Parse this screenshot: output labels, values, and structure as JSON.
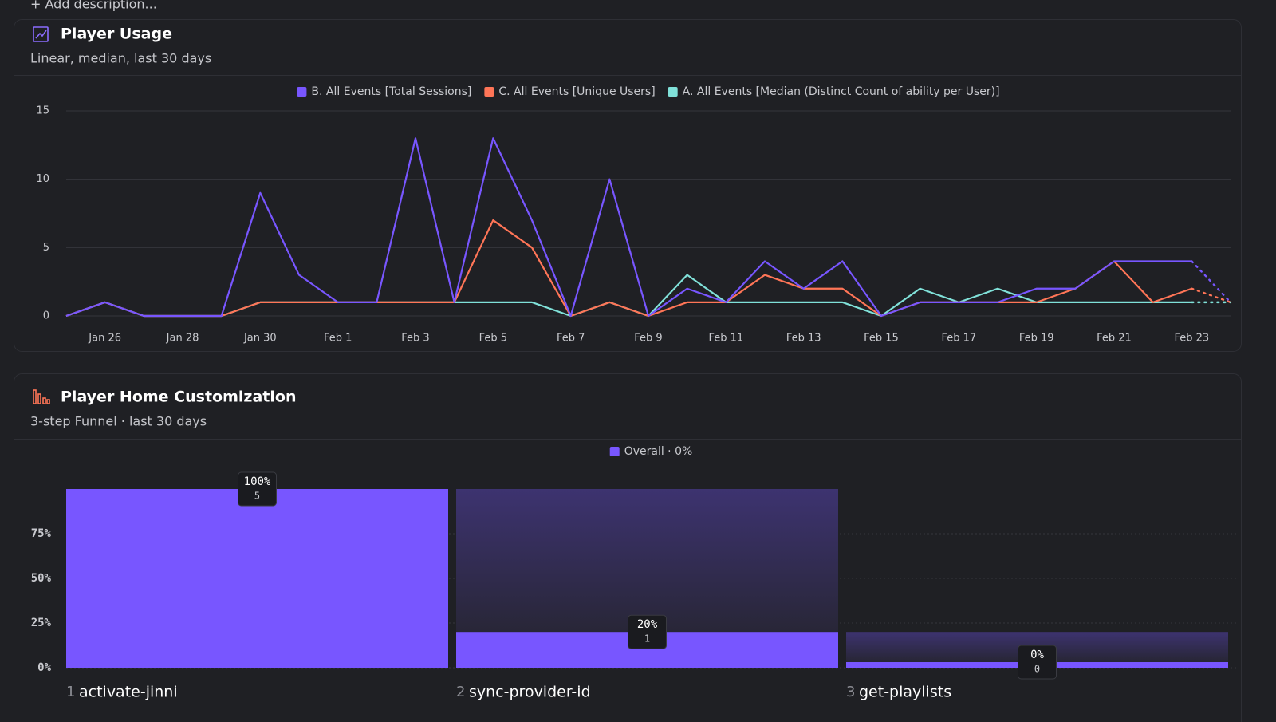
{
  "description": "+ Add description...",
  "chart_data": [
    {
      "type": "line",
      "title": "Player Usage",
      "subtitle": "Linear, median, last 30 days",
      "x": [
        null,
        "Jan 26",
        null,
        "Jan 28",
        null,
        "Jan 30",
        null,
        "Feb 1",
        null,
        "Feb 3",
        null,
        "Feb 5",
        null,
        "Feb 7",
        null,
        "Feb 9",
        null,
        "Feb 11",
        null,
        "Feb 13",
        null,
        "Feb 15",
        null,
        "Feb 17",
        null,
        "Feb 19",
        null,
        "Feb 21",
        null,
        "Feb 23",
        null
      ],
      "series": [
        {
          "name": "B. All Events [Total Sessions]",
          "color": "#7856ff",
          "values": [
            0,
            1,
            0,
            0,
            0,
            9,
            3,
            1,
            1,
            13,
            1,
            13,
            7,
            0,
            10,
            0,
            2,
            1,
            4,
            2,
            4,
            0,
            1,
            1,
            1,
            2,
            2,
            4,
            4,
            4,
            1
          ]
        },
        {
          "name": "C. All Events [Unique Users]",
          "color": "#ff7557",
          "values": [
            0,
            1,
            0,
            0,
            0,
            1,
            1,
            1,
            1,
            1,
            1,
            7,
            5,
            0,
            1,
            0,
            1,
            1,
            3,
            2,
            2,
            0,
            1,
            1,
            1,
            1,
            2,
            4,
            1,
            2,
            1
          ]
        },
        {
          "name": "A. All Events [Median (Distinct Count of ability per User)]",
          "color": "#80e1d9",
          "values": [
            0,
            1,
            0,
            0,
            0,
            1,
            1,
            1,
            1,
            1,
            1,
            1,
            1,
            0,
            1,
            0,
            3,
            1,
            1,
            1,
            1,
            0,
            2,
            1,
            2,
            1,
            1,
            1,
            1,
            1,
            1
          ]
        }
      ],
      "ylim": [
        0,
        15
      ],
      "yticks": [
        0,
        5,
        10,
        15
      ],
      "grid": true,
      "legend": "top"
    },
    {
      "type": "bar",
      "title": "Player Home Customization",
      "subtitle": "3-step Funnel · last 30 days",
      "steps": [
        "1",
        "2",
        "3"
      ],
      "categories": [
        "activate-jinni",
        "sync-provider-id",
        "get-playlists"
      ],
      "series": [
        {
          "name": "Overall · 0%",
          "color": "#7856ff",
          "values": [
            100,
            20,
            0
          ],
          "value_labels": [
            "100%",
            "20%",
            "0%"
          ],
          "counts": [
            5,
            1,
            0
          ]
        }
      ],
      "ylim": [
        0,
        100
      ],
      "yticks": [
        {
          "value": 0,
          "label": "0%"
        },
        {
          "value": 25,
          "label": "25%"
        },
        {
          "value": 50,
          "label": "50%"
        },
        {
          "value": 75,
          "label": "75%"
        }
      ],
      "grid": true,
      "legend": "top"
    }
  ]
}
